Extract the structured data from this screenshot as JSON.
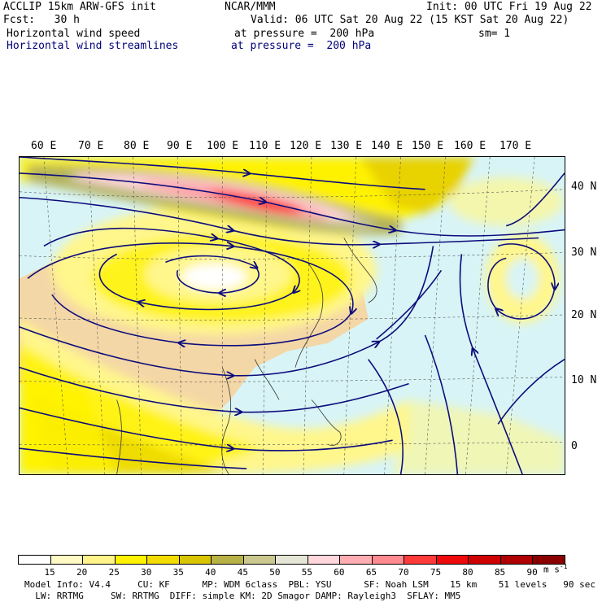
{
  "header": {
    "line1_left": "ACCLIP 15km ARW-GFS init",
    "line1_mid": "NCAR/MMM",
    "line1_right": "Init: 00 UTC Fri 19 Aug 22",
    "line2_left": "Fcst:   30 h",
    "line2_right": "Valid: 06 UTC Sat 20 Aug 22 (15 KST Sat 20 Aug 22)",
    "line3_left": "Horizontal wind speed",
    "line3_mid": "at pressure =  200 hPa",
    "line3_right": "sm= 1",
    "line4_left": "Horizontal wind streamlines",
    "line4_mid": "at pressure =  200 hPa"
  },
  "map": {
    "lon_labels": [
      "60 E",
      "70 E",
      "80 E",
      "90 E",
      "100 E",
      "110 E",
      "120 E",
      "130 E",
      "140 E",
      "150 E",
      "160 E",
      "170 E"
    ],
    "lat_labels": [
      "40 N",
      "30 N",
      "20 N",
      "10 N",
      "0"
    ],
    "colors": {
      "ocean_light": "#d8f4f6",
      "land_tan": "#f4d7a6",
      "yellow_light": "#fff68c",
      "yellow": "#fff200",
      "gold": "#e8d200",
      "olive": "#b4b25a",
      "olive_light": "#c8c694",
      "pink_light": "#ffd4d8",
      "pink": "#ff9fa8",
      "red": "#ff2a2a",
      "streamline": "#0c0c7c"
    }
  },
  "legend": {
    "levels": [
      "15",
      "20",
      "25",
      "30",
      "35",
      "40",
      "45",
      "50",
      "55",
      "60",
      "65",
      "70",
      "75",
      "80",
      "85",
      "90"
    ],
    "unit": "m s",
    "unit_exp": "-1",
    "colors": [
      "#ffffff",
      "#fff9c4",
      "#fff38a",
      "#fff200",
      "#f2dc00",
      "#d9c400",
      "#b8b246",
      "#cac88e",
      "#e6e6d6",
      "#ffd6dc",
      "#ffadb3",
      "#ff8a90",
      "#ff3a3a",
      "#ee0a0a",
      "#cf0000",
      "#b00000",
      "#8a0000"
    ]
  },
  "footer": {
    "line1": "Model Info: V4.4     CU: KF      MP: WDM 6class  PBL: YSU      SF: Noah LSM    15 km    51 levels   90 sec",
    "line2": "  LW: RRTMG     SW: RRTMG  DIFF: simple KM: 2D Smagor DAMP: Rayleigh3  SFLAY: MM5"
  }
}
